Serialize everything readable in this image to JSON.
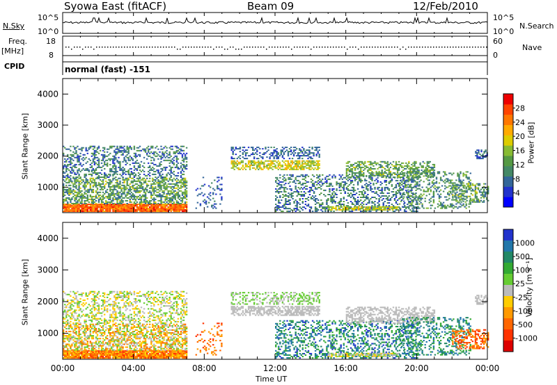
{
  "header": {
    "station": "Syowa East (fitACF)",
    "beam": "Beam 09",
    "date": "12/Feb/2010"
  },
  "panels": {
    "nsky_label": "N.Sky",
    "nsky_ticks": [
      "10^5",
      "10^0"
    ],
    "nsearch_label": "N.Search",
    "nsearch_ticks": [
      "10^5",
      "10^0"
    ],
    "freq_label": "Freq.",
    "freq_unit": "[MHz]",
    "freq_ticks": [
      "18",
      "8"
    ],
    "nave_label": "Nave",
    "nave_ticks": [
      "60",
      "0"
    ],
    "cpid_label": "CPID",
    "cpid_value": "normal (fast) -151"
  },
  "colors": {
    "power_scale": [
      "#0000ff",
      "#2233cc",
      "#336699",
      "#448866",
      "#559944",
      "#88bb33",
      "#ddcc00",
      "#ffaa00",
      "#ff7700",
      "#ff4400",
      "#ee0000"
    ],
    "velocity_scale": [
      "#2233cc",
      "#2277aa",
      "#228866",
      "#33aa33",
      "#66cc33",
      "#bbbbbb",
      "#ffcc00",
      "#ff9900",
      "#ff6600",
      "#ff3300",
      "#dd0000"
    ]
  },
  "chart_data": [
    {
      "type": "heatmap",
      "quantity": "Power",
      "xlabel": "Time UT",
      "ylabel": "Slant Range [km]",
      "x_ticks": [
        "00:00",
        "04:00",
        "08:00",
        "12:00",
        "16:00",
        "20:00",
        "00:00"
      ],
      "y_ticks": [
        1000,
        2000,
        3000,
        4000
      ],
      "ylim": [
        180,
        4500
      ],
      "colorbar": {
        "label": "Power [dB]",
        "ticks": [
          4,
          8,
          12,
          16,
          20,
          24,
          28
        ],
        "range": [
          0,
          32
        ]
      }
    },
    {
      "type": "heatmap",
      "quantity": "Velocity",
      "xlabel": "Time UT",
      "ylabel": "Slant Range [km]",
      "x_ticks": [
        "00:00",
        "04:00",
        "08:00",
        "12:00",
        "16:00",
        "20:00",
        "00:00"
      ],
      "y_ticks": [
        1000,
        2000,
        3000,
        4000
      ],
      "ylim": [
        180,
        4500
      ],
      "colorbar": {
        "label": "Velocity [m s⁻¹]",
        "ticks": [
          "1000",
          "500",
          "100",
          "25",
          "-25",
          "-100",
          "-500",
          "-1000"
        ]
      }
    }
  ]
}
